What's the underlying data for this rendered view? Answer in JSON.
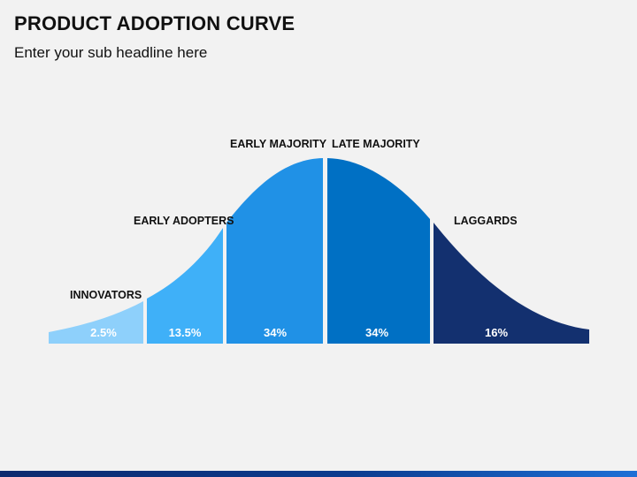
{
  "slide": {
    "title": "PRODUCT ADOPTION CURVE",
    "subtitle": "Enter your sub headline here"
  },
  "segments": [
    {
      "label": "INNOVATORS",
      "percent": "2.5%",
      "color": "#8ed0fb"
    },
    {
      "label": "EARLY ADOPTERS",
      "percent": "13.5%",
      "color": "#3fb0f8"
    },
    {
      "label": "EARLY MAJORITY",
      "percent": "34%",
      "color": "#2091e6"
    },
    {
      "label": "LATE MAJORITY",
      "percent": "34%",
      "color": "#0070c4"
    },
    {
      "label": "LAGGARDS",
      "percent": "16%",
      "color": "#13306f"
    }
  ]
}
